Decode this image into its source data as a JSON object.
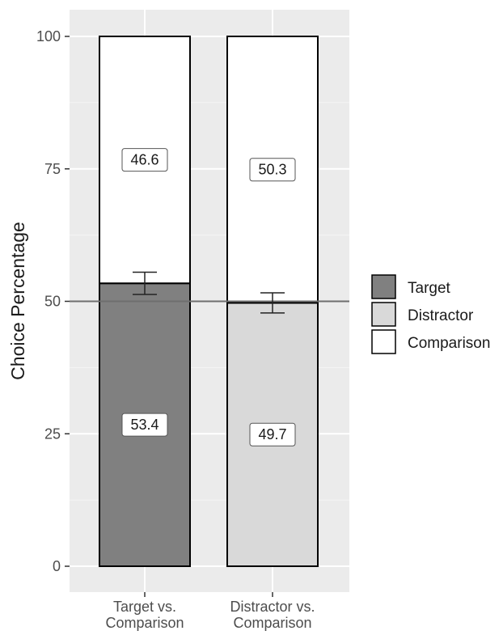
{
  "chart_data": {
    "type": "bar",
    "stacked": true,
    "ylabel": "Choice Percentage",
    "xlabel": "",
    "ylim": [
      0,
      100
    ],
    "y_ticks": [
      "0",
      "25",
      "50",
      "75",
      "100"
    ],
    "categories": [
      "Target vs. Comparison",
      "Distractor vs. Comparison"
    ],
    "category_lines": [
      [
        "Target vs.",
        "Comparison"
      ],
      [
        "Distractor vs.",
        "Comparison"
      ]
    ],
    "bars": [
      {
        "category": "Target vs. Comparison",
        "segments": [
          {
            "name": "Target",
            "value": 53.4,
            "label": "53.4",
            "color": "#808080"
          },
          {
            "name": "Comparison",
            "value": 46.6,
            "label": "46.6",
            "color": "#ffffff"
          }
        ],
        "error_bar": {
          "center": 53.4,
          "low": 51.3,
          "high": 55.5
        }
      },
      {
        "category": "Distractor vs. Comparison",
        "segments": [
          {
            "name": "Distractor",
            "value": 49.7,
            "label": "49.7",
            "color": "#d9d9d9"
          },
          {
            "name": "Comparison",
            "value": 50.3,
            "label": "50.3",
            "color": "#ffffff"
          }
        ],
        "error_bar": {
          "center": 49.7,
          "low": 47.8,
          "high": 51.6
        }
      }
    ],
    "reference_line": 50,
    "legend": {
      "placement": "right",
      "items": [
        {
          "name": "Target",
          "color": "#808080"
        },
        {
          "name": "Distractor",
          "color": "#d9d9d9"
        },
        {
          "name": "Comparison",
          "color": "#ffffff"
        }
      ]
    },
    "panel_background": "#ebebeb",
    "grid": true
  }
}
